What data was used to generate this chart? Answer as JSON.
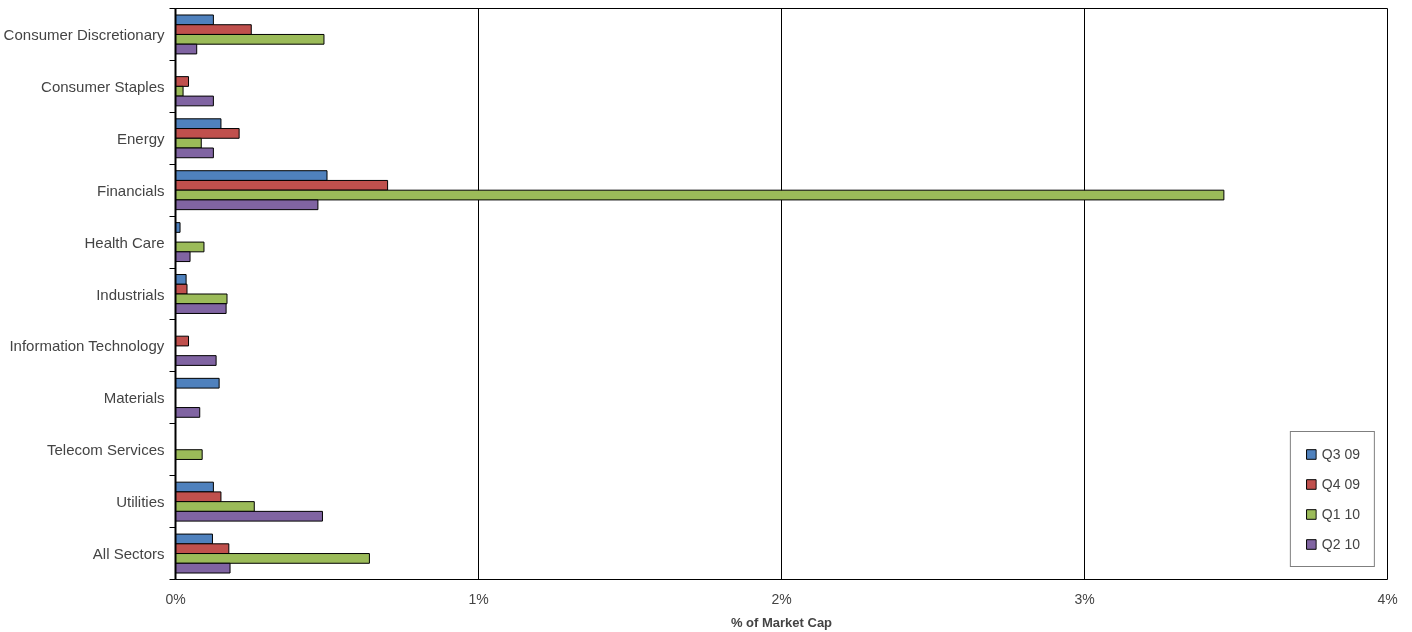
{
  "chart_data": {
    "type": "bar",
    "orientation": "horizontal",
    "xlabel": "% of Market Cap",
    "categories": [
      "Consumer Discretionary",
      "Consumer Staples",
      "Energy",
      "Financials",
      "Health Care",
      "Industrials",
      "Information Technology",
      "Materials",
      "Telecom Services",
      "Utilities",
      "All Sectors"
    ],
    "series": [
      {
        "name": "Q3 09",
        "color": "#4f81bd",
        "values": [
          0.125,
          null,
          0.15,
          0.5,
          0.015,
          0.035,
          null,
          0.144,
          null,
          0.125,
          0.122
        ]
      },
      {
        "name": "Q4 09",
        "color": "#c0504d",
        "values": [
          0.25,
          0.043,
          0.21,
          0.7,
          null,
          0.038,
          0.043,
          null,
          null,
          0.15,
          0.176
        ]
      },
      {
        "name": "Q1 10",
        "color": "#9bbb59",
        "values": [
          0.49,
          0.025,
          0.085,
          3.46,
          0.094,
          0.17,
          null,
          null,
          0.088,
          0.26,
          0.64
        ]
      },
      {
        "name": "Q2 10",
        "color": "#8064a2",
        "values": [
          0.07,
          0.125,
          0.125,
          0.47,
          0.048,
          0.167,
          0.134,
          0.08,
          null,
          0.485,
          0.18
        ]
      }
    ],
    "xlim": [
      0,
      4
    ],
    "xticks": [
      {
        "value": 0,
        "label": "0%"
      },
      {
        "value": 1,
        "label": "1%"
      },
      {
        "value": 2,
        "label": "2%"
      },
      {
        "value": 3,
        "label": "3%"
      },
      {
        "value": 4,
        "label": "4%"
      }
    ],
    "grid": "x",
    "legend": "bottom right"
  }
}
